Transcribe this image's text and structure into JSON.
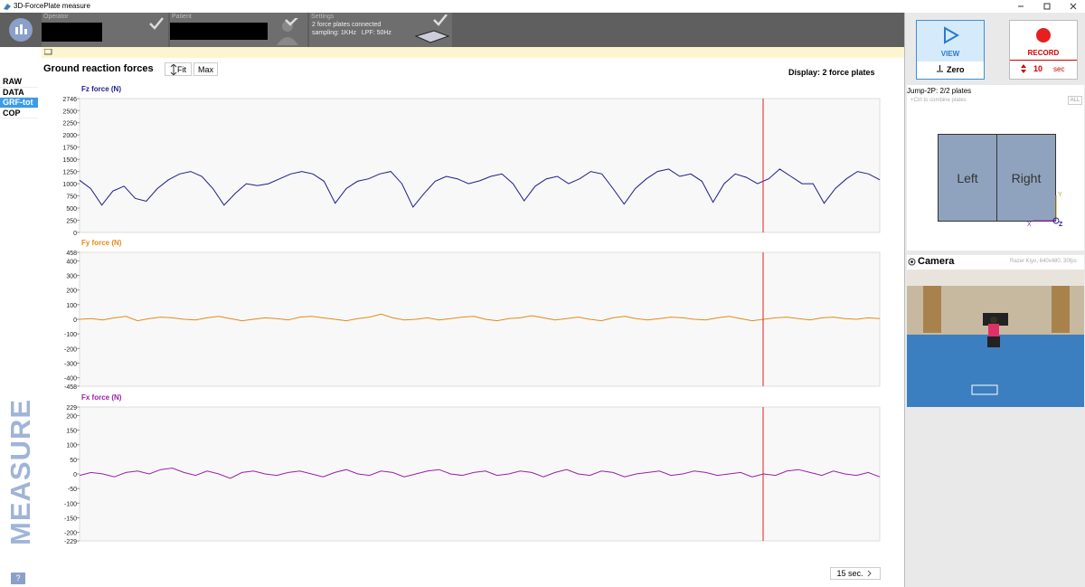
{
  "window": {
    "title": "3D-ForcePlate measure"
  },
  "header": {
    "operator_label": "Operator",
    "patient_label": "Patient",
    "settings_label": "Settings",
    "settings_line1": "2 force plates connected",
    "settings_line2": "sampling: 1KHz   LPF: 50Hz"
  },
  "nav": {
    "items": [
      "RAW",
      "DATA",
      "GRF-tot",
      "COP"
    ],
    "mode": "MEASURE",
    "help": "?"
  },
  "toolbar": {
    "title": "Ground reaction forces",
    "fit": "Fit",
    "max": "Max",
    "display": "Display: 2 force plates"
  },
  "chart_data": [
    {
      "type": "line",
      "title": "Fz force (N)",
      "color": "#1c1c8a",
      "values": [
        1070,
        900,
        560,
        850,
        950,
        700,
        640,
        900,
        1080,
        1200,
        1250,
        1150,
        900,
        560,
        800,
        1000,
        960,
        1000,
        1100,
        1200,
        1250,
        1200,
        1050,
        600,
        900,
        1050,
        1100,
        1200,
        1250,
        1000,
        520,
        800,
        1050,
        1150,
        1100,
        1000,
        1060,
        1150,
        1200,
        1000,
        650,
        950,
        1100,
        1150,
        1000,
        1100,
        1250,
        1200,
        900,
        580,
        900,
        1100,
        1250,
        1300,
        1150,
        1200,
        1050,
        620,
        1000,
        1200,
        1130,
        1000,
        1100,
        1300,
        1150,
        1000,
        1000,
        600,
        900,
        1100,
        1250,
        1200,
        1080
      ],
      "ylim": [
        0,
        2746
      ],
      "yticks": [
        0,
        250,
        500,
        750,
        1000,
        1250,
        1500,
        1750,
        2000,
        2250,
        2500,
        2746
      ]
    },
    {
      "type": "line",
      "title": "Fy force (N)",
      "color": "#e48a1c",
      "values": [
        0,
        5,
        -5,
        10,
        20,
        -10,
        5,
        15,
        10,
        0,
        -5,
        10,
        20,
        5,
        -10,
        0,
        10,
        5,
        -5,
        15,
        20,
        10,
        0,
        -10,
        5,
        15,
        35,
        10,
        -5,
        0,
        10,
        -5,
        5,
        15,
        20,
        0,
        -10,
        5,
        10,
        25,
        10,
        -5,
        5,
        15,
        0,
        -10,
        10,
        20,
        5,
        -5,
        5,
        15,
        10,
        0,
        -5,
        10,
        20,
        5,
        -10,
        0,
        10,
        15,
        5,
        -5,
        10,
        15,
        5,
        0,
        10,
        5
      ],
      "ylim": [
        -458,
        458
      ],
      "yticks": [
        -458,
        -400,
        -300,
        -200,
        -100,
        0,
        100,
        200,
        300,
        400,
        458
      ]
    },
    {
      "type": "line",
      "title": "Fx force (N)",
      "color": "#9a20a8",
      "values": [
        -5,
        5,
        0,
        -10,
        5,
        10,
        0,
        15,
        20,
        5,
        -5,
        10,
        0,
        -15,
        5,
        10,
        0,
        -5,
        5,
        10,
        0,
        -10,
        5,
        15,
        0,
        -5,
        10,
        5,
        -10,
        0,
        10,
        15,
        0,
        -5,
        5,
        10,
        -5,
        0,
        10,
        5,
        -10,
        5,
        15,
        0,
        -5,
        10,
        5,
        -10,
        0,
        5,
        10,
        -5,
        0,
        10,
        5,
        -5,
        0,
        5,
        -10,
        0,
        -5,
        10,
        15,
        5,
        -5,
        10,
        0,
        -5,
        5,
        -10
      ],
      "ylim": [
        -229,
        229
      ],
      "yticks": [
        -229,
        -200,
        -150,
        -100,
        -50,
        0,
        50,
        100,
        150,
        200,
        229
      ]
    }
  ],
  "time_window": "15 sec.",
  "controls": {
    "view": "VIEW",
    "zero": "Zero",
    "record": "RECORD",
    "duration": "10",
    "duration_unit": "sec"
  },
  "plates": {
    "title": "Jump-2P: 2/2 plates",
    "hint": "+Ctrl to combine plates",
    "all": "ALL",
    "left": "Left",
    "right": "Right",
    "axis_y": "Y",
    "axis_x": "X",
    "axis_z": "Z"
  },
  "camera": {
    "title": "Camera",
    "info": "Razer Kiyo, 640x480, 30fps"
  }
}
